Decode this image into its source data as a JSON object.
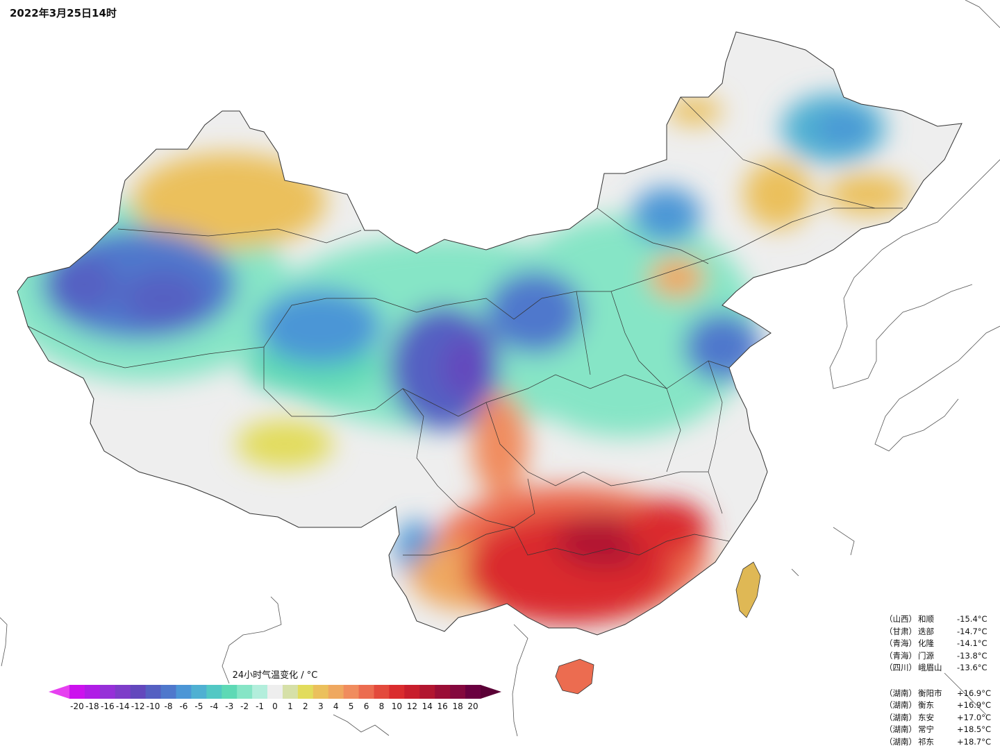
{
  "title": "2022年3月25日14时",
  "legend": {
    "title": "24小时气温变化 / °C",
    "ticks": [
      "-20",
      "-18",
      "-16",
      "-14",
      "-12",
      "-10",
      "-8",
      "-6",
      "-5",
      "-4",
      "-3",
      "-2",
      "-1",
      "0",
      "1",
      "2",
      "3",
      "4",
      "5",
      "6",
      "8",
      "10",
      "12",
      "14",
      "16",
      "18",
      "20"
    ],
    "colors": [
      "#cc11ee",
      "#b01de6",
      "#9630d8",
      "#7e3dc9",
      "#6348bd",
      "#5560c2",
      "#4f78cc",
      "#4c96d6",
      "#4fb0d2",
      "#52c8c4",
      "#5ed9b5",
      "#86e5c6",
      "#b3eedc",
      "#eeeeee",
      "#d6e0a8",
      "#e2dc5c",
      "#ebc05c",
      "#efa860",
      "#f08c5e",
      "#ec6c50",
      "#e34a3c",
      "#da2c2e",
      "#c81e2c",
      "#b21630",
      "#9a0e36",
      "#84083e",
      "#6a0040"
    ],
    "under_color": "#e640f0",
    "over_color": "#5a0035"
  },
  "extremes": {
    "cold": [
      {
        "region": "（山西）",
        "city": "和顺",
        "value": "-15.4°C"
      },
      {
        "region": "（甘肃）",
        "city": "迭部",
        "value": "-14.7°C"
      },
      {
        "region": "（青海）",
        "city": "化隆",
        "value": "-14.1°C"
      },
      {
        "region": "（青海）",
        "city": "门源",
        "value": "-13.8°C"
      },
      {
        "region": "（四川）",
        "city": "峨眉山",
        "value": "-13.6°C"
      }
    ],
    "warm": [
      {
        "region": "（湖南）",
        "city": "衡阳市",
        "value": "+16.9°C"
      },
      {
        "region": "（湖南）",
        "city": "衡东",
        "value": "+16.9°C"
      },
      {
        "region": "（湖南）",
        "city": "东安",
        "value": "+17.0°C"
      },
      {
        "region": "（湖南）",
        "city": "常宁",
        "value": "+18.5°C"
      },
      {
        "region": "（湖南）",
        "city": "祁东",
        "value": "+18.7°C"
      }
    ]
  }
}
